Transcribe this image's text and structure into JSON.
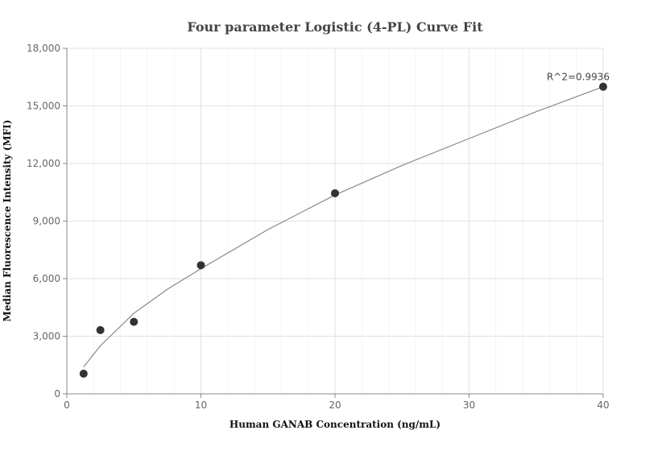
{
  "chart_data": {
    "type": "scatter",
    "title": "Four parameter Logistic (4-PL) Curve Fit",
    "xlabel": "Human GANAB Concentration (ng/mL)",
    "ylabel": "Median Fluorescence Intensity (MFI)",
    "xlim": [
      0,
      40
    ],
    "ylim": [
      0,
      18000
    ],
    "x_ticks": [
      0,
      10,
      20,
      30,
      40
    ],
    "x_tick_labels": [
      "0",
      "10",
      "20",
      "30",
      "40"
    ],
    "y_ticks": [
      0,
      3000,
      6000,
      9000,
      12000,
      15000,
      18000
    ],
    "y_tick_labels": [
      "0",
      "3,000",
      "6,000",
      "9,000",
      "12,000",
      "15,000",
      "18,000"
    ],
    "grid": true,
    "series": [
      {
        "values_x": [
          1.25,
          2.5,
          5,
          10,
          20,
          40
        ],
        "values_y": [
          1050,
          3320,
          3750,
          6700,
          10450,
          16000
        ],
        "color": "#333333"
      }
    ],
    "fit_curve": {
      "x": [
        1.25,
        2.5,
        5,
        7.5,
        10,
        15,
        20,
        25,
        30,
        35,
        40
      ],
      "y": [
        1400,
        2500,
        4200,
        5450,
        6520,
        8560,
        10360,
        11900,
        13300,
        14700,
        16000
      ],
      "color": "#888888"
    },
    "annotations": [
      {
        "text": "R^2=0.9936",
        "x": 40,
        "y": 16000
      }
    ]
  }
}
